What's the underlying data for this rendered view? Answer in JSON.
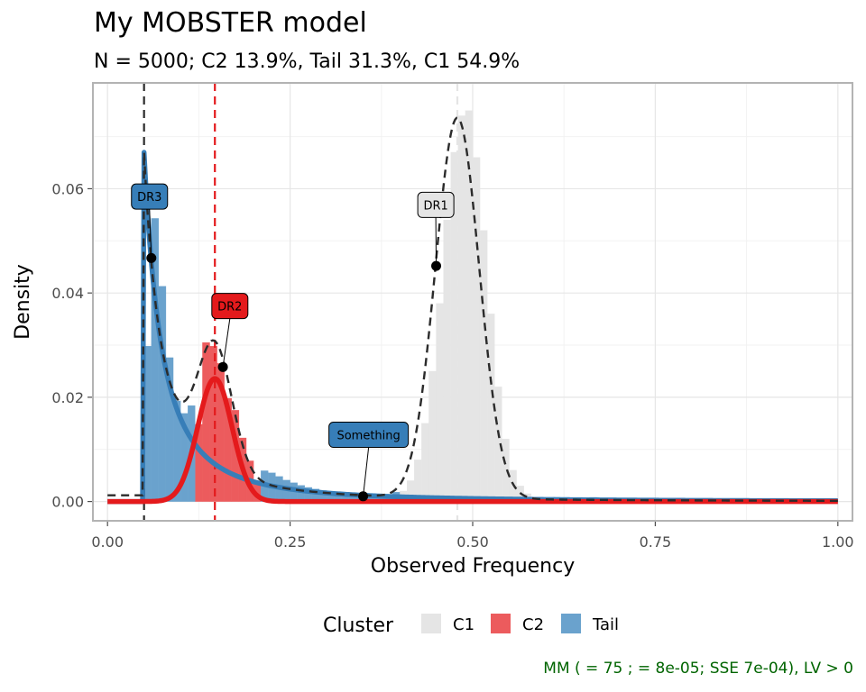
{
  "title": "My MOBSTER model",
  "subtitle": "N = 5000; C2 13.9%, Tail 31.3%, C1 54.9%",
  "caption": "MM (  = 75 ;   = 8e-05; SSE 7e-04), LV > 0",
  "legend": {
    "title": "Cluster",
    "items": [
      {
        "label": "C1",
        "color": "#e5e5e5"
      },
      {
        "label": "C2",
        "color": "#ec5b5d"
      },
      {
        "label": "Tail",
        "color": "#6aa2cd"
      }
    ]
  },
  "colors": {
    "c1": "#e5e5e5",
    "c2": "#ec5b5d",
    "tail": "#6aa2cd",
    "c2_line": "#e41a1c",
    "tail_line": "#377eb8",
    "mixture": "#2b2b2b"
  },
  "chart_data": {
    "type": "bar",
    "title": "My MOBSTER model",
    "subtitle": "N = 5000; C2 13.9%, Tail 31.3%, C1 54.9%",
    "xlabel": "Observed Frequency",
    "ylabel": "Density",
    "xlim": [
      -0.02,
      1.02
    ],
    "ylim": [
      -0.0037,
      0.0803
    ],
    "x_ticks": [
      0,
      0.25,
      0.5,
      0.75,
      1
    ],
    "x_tick_labels": [
      "0.00",
      "0.25",
      "0.50",
      "0.75",
      "1.00"
    ],
    "y_ticks": [
      0,
      0.02,
      0.04,
      0.06
    ],
    "y_tick_labels": [
      "0.00",
      "0.02",
      "0.04",
      "0.06"
    ],
    "grid": true,
    "legend_position": "bottom",
    "bin_width": 0.01,
    "series": [
      {
        "name": "C1",
        "color": "#e5e5e5",
        "x": [
          0.38,
          0.39,
          0.4,
          0.41,
          0.42,
          0.43,
          0.44,
          0.45,
          0.46,
          0.47,
          0.48,
          0.49,
          0.5,
          0.51,
          0.52,
          0.53,
          0.54,
          0.55,
          0.56,
          0.57,
          0.58,
          0.59
        ],
        "values": [
          0.0005,
          0.001,
          0.002,
          0.004,
          0.008,
          0.015,
          0.025,
          0.038,
          0.054,
          0.067,
          0.074,
          0.075,
          0.066,
          0.052,
          0.036,
          0.022,
          0.012,
          0.006,
          0.003,
          0.0015,
          0.0008,
          0.0004
        ]
      },
      {
        "name": "C2",
        "color": "#ec5b5d",
        "x": [
          0.12,
          0.13,
          0.14,
          0.15,
          0.16,
          0.17,
          0.18,
          0.19,
          0.2
        ],
        "values": [
          0.0148,
          0.0305,
          0.0298,
          0.0265,
          0.0198,
          0.0175,
          0.0122,
          0.0078,
          0.0037
        ]
      },
      {
        "name": "Tail",
        "color": "#6aa2cd",
        "x": [
          0.05,
          0.06,
          0.07,
          0.08,
          0.09,
          0.1,
          0.11,
          0.21,
          0.22,
          0.23,
          0.24,
          0.25,
          0.26,
          0.27,
          0.28,
          0.29,
          0.3,
          0.31,
          0.32,
          0.33,
          0.34,
          0.35,
          0.36,
          0.37,
          0.38,
          0.39,
          0.61,
          0.66
        ],
        "values": [
          0.0298,
          0.0543,
          0.0413,
          0.0276,
          0.0193,
          0.0169,
          0.0184,
          0.0059,
          0.0055,
          0.0048,
          0.0041,
          0.0036,
          0.0031,
          0.0027,
          0.0024,
          0.0021,
          0.0019,
          0.0017,
          0.0015,
          0.0014,
          0.0013,
          0.0012,
          0.0012,
          0.0012,
          0.0011,
          0.0018,
          0.0008,
          0.0008
        ]
      }
    ],
    "density_curves": [
      {
        "component": "Tail",
        "type": "pareto",
        "shape": 1.07,
        "scale": 0.05,
        "weight": 0.313,
        "color": "#377eb8"
      },
      {
        "component": "C2",
        "type": "beta_approx",
        "mean": 0.147,
        "sd": 0.0235,
        "weight": 0.139,
        "color": "#e41a1c"
      },
      {
        "component": "C1",
        "type": "beta_approx",
        "mean": 0.479,
        "sd": 0.03,
        "weight": 0.549
      },
      {
        "component": "Mixture",
        "type": "sum",
        "style": "dashed",
        "color": "#2b2b2b"
      }
    ],
    "vlines": [
      {
        "x": 0.05,
        "color": "#2b2b2b",
        "style": "dashed"
      },
      {
        "x": 0.147,
        "color": "#e41a1c",
        "style": "dashed"
      },
      {
        "x": 0.479,
        "color": "#e5e5e5",
        "style": "dashed"
      }
    ],
    "annotations": [
      {
        "label": "DR3",
        "x": 0.06,
        "y": 0.0467,
        "label_x": 0.0575,
        "label_y": 0.0585,
        "fill": "#377eb8",
        "text_color": "#000000"
      },
      {
        "label": "DR2",
        "x": 0.158,
        "y": 0.0258,
        "label_x": 0.1675,
        "label_y": 0.0375,
        "fill": "#e41a1c",
        "text_color": "#000000"
      },
      {
        "label": "DR1",
        "x": 0.45,
        "y": 0.0452,
        "label_x": 0.4495,
        "label_y": 0.0569,
        "fill": "#e5e5e5",
        "text_color": "#000000"
      },
      {
        "label": "Something",
        "x": 0.35,
        "y": 0.001,
        "label_x": 0.3575,
        "label_y": 0.0128,
        "fill": "#377eb8",
        "text_color": "#000000"
      }
    ]
  }
}
